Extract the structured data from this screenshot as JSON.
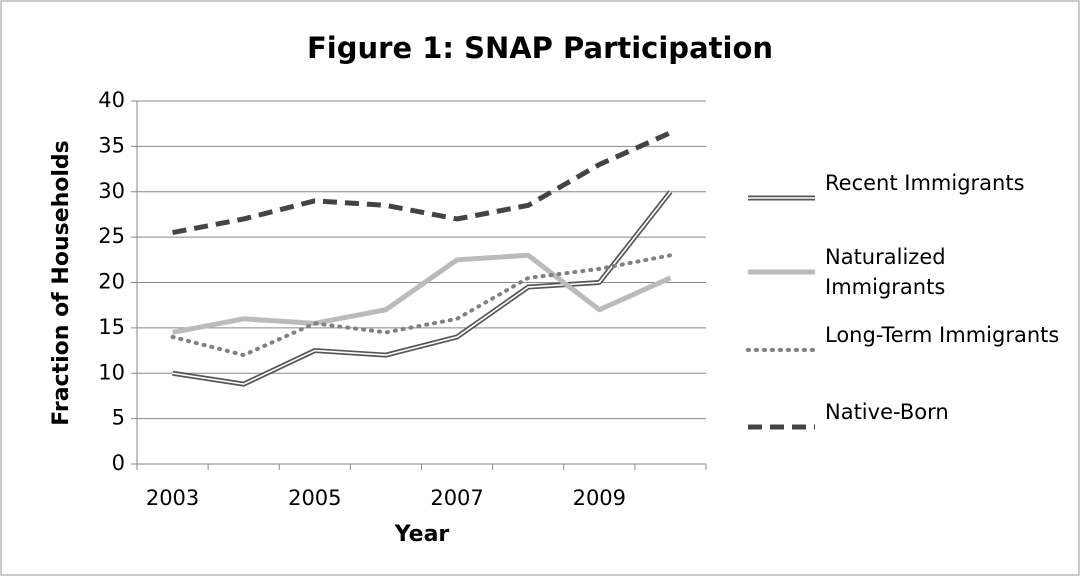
{
  "chart_data": {
    "type": "line",
    "title": "Figure 1: SNAP Participation",
    "x_label": "Year",
    "y_label": "Fraction of Households",
    "categories": [
      "2003",
      null,
      "2005",
      null,
      "2007",
      null,
      "2009",
      null
    ],
    "series": [
      {
        "name": "Recent Immigrants",
        "color": "#555555",
        "style": "double",
        "values": [
          10,
          8.8,
          12.5,
          12,
          14,
          19.5,
          20,
          30
        ]
      },
      {
        "name": "Naturalized Immigrants",
        "color": "#bbbbbb",
        "style": "solid",
        "values": [
          14.5,
          16,
          15.5,
          17,
          22.5,
          23,
          17,
          20.5
        ]
      },
      {
        "name": "Long-Term Immigrants",
        "color": "#808080",
        "style": "dotted",
        "values": [
          14,
          12,
          15.5,
          14.5,
          16,
          20.5,
          21.5,
          23
        ]
      },
      {
        "name": "Native-Born",
        "color": "#444444",
        "style": "dashed",
        "values": [
          25.5,
          27,
          29,
          28.5,
          27,
          28.5,
          33,
          36.5
        ]
      }
    ],
    "ylim": [
      0,
      40
    ],
    "yticks": [
      0,
      5,
      10,
      15,
      20,
      25,
      30,
      35,
      40
    ],
    "grid": true,
    "legend": "right"
  }
}
